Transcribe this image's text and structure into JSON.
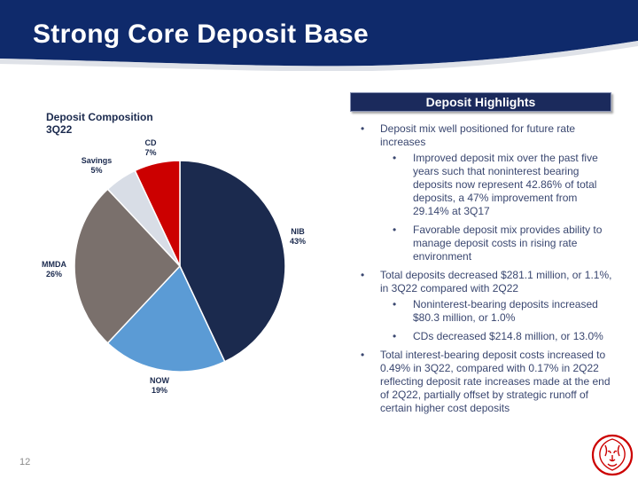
{
  "slide": {
    "title": "Strong Core Deposit Base",
    "page_number": "12"
  },
  "chart_data": {
    "type": "pie",
    "title": "Deposit Composition\n3Q22",
    "slices": [
      {
        "label": "NIB",
        "value": 43,
        "display": "43%",
        "color": "#1b2a4e"
      },
      {
        "label": "NOW",
        "value": 19,
        "display": "19%",
        "color": "#5b9bd5"
      },
      {
        "label": "MMDA",
        "value": 26,
        "display": "26%",
        "color": "#7a706c"
      },
      {
        "label": "Savings",
        "value": 5,
        "display": "5%",
        "color": "#d8dde6"
      },
      {
        "label": "CD",
        "value": 7,
        "display": "7%",
        "color": "#cc0000"
      }
    ]
  },
  "highlights": {
    "title": "Deposit Highlights",
    "items": [
      {
        "text": "Deposit mix well positioned for future rate increases",
        "sub": [
          "Improved deposit mix over the past five years such that noninterest bearing deposits now represent 42.86% of total deposits, a 47% improvement from 29.14% at 3Q17",
          "Favorable deposit mix provides ability to manage deposit costs in rising rate environment"
        ]
      },
      {
        "text": "Total deposits decreased $281.1 million, or 1.1%, in 3Q22 compared with 2Q22",
        "sub": [
          "Noninterest-bearing deposits increased $80.3 million, or 1.0%",
          "CDs decreased $214.8 million, or 13.0%"
        ]
      },
      {
        "text": "Total interest-bearing deposit costs increased to 0.49% in 3Q22, compared with 0.17% in 2Q22 reflecting deposit rate increases made at the end of 2Q22, partially offset by strategic runoff of certain higher cost deposits",
        "sub": []
      }
    ]
  },
  "colors": {
    "banner": "#0f2a6b",
    "accent_red": "#cc0000"
  },
  "icons": {
    "logo": "lion-head-logo-icon"
  }
}
